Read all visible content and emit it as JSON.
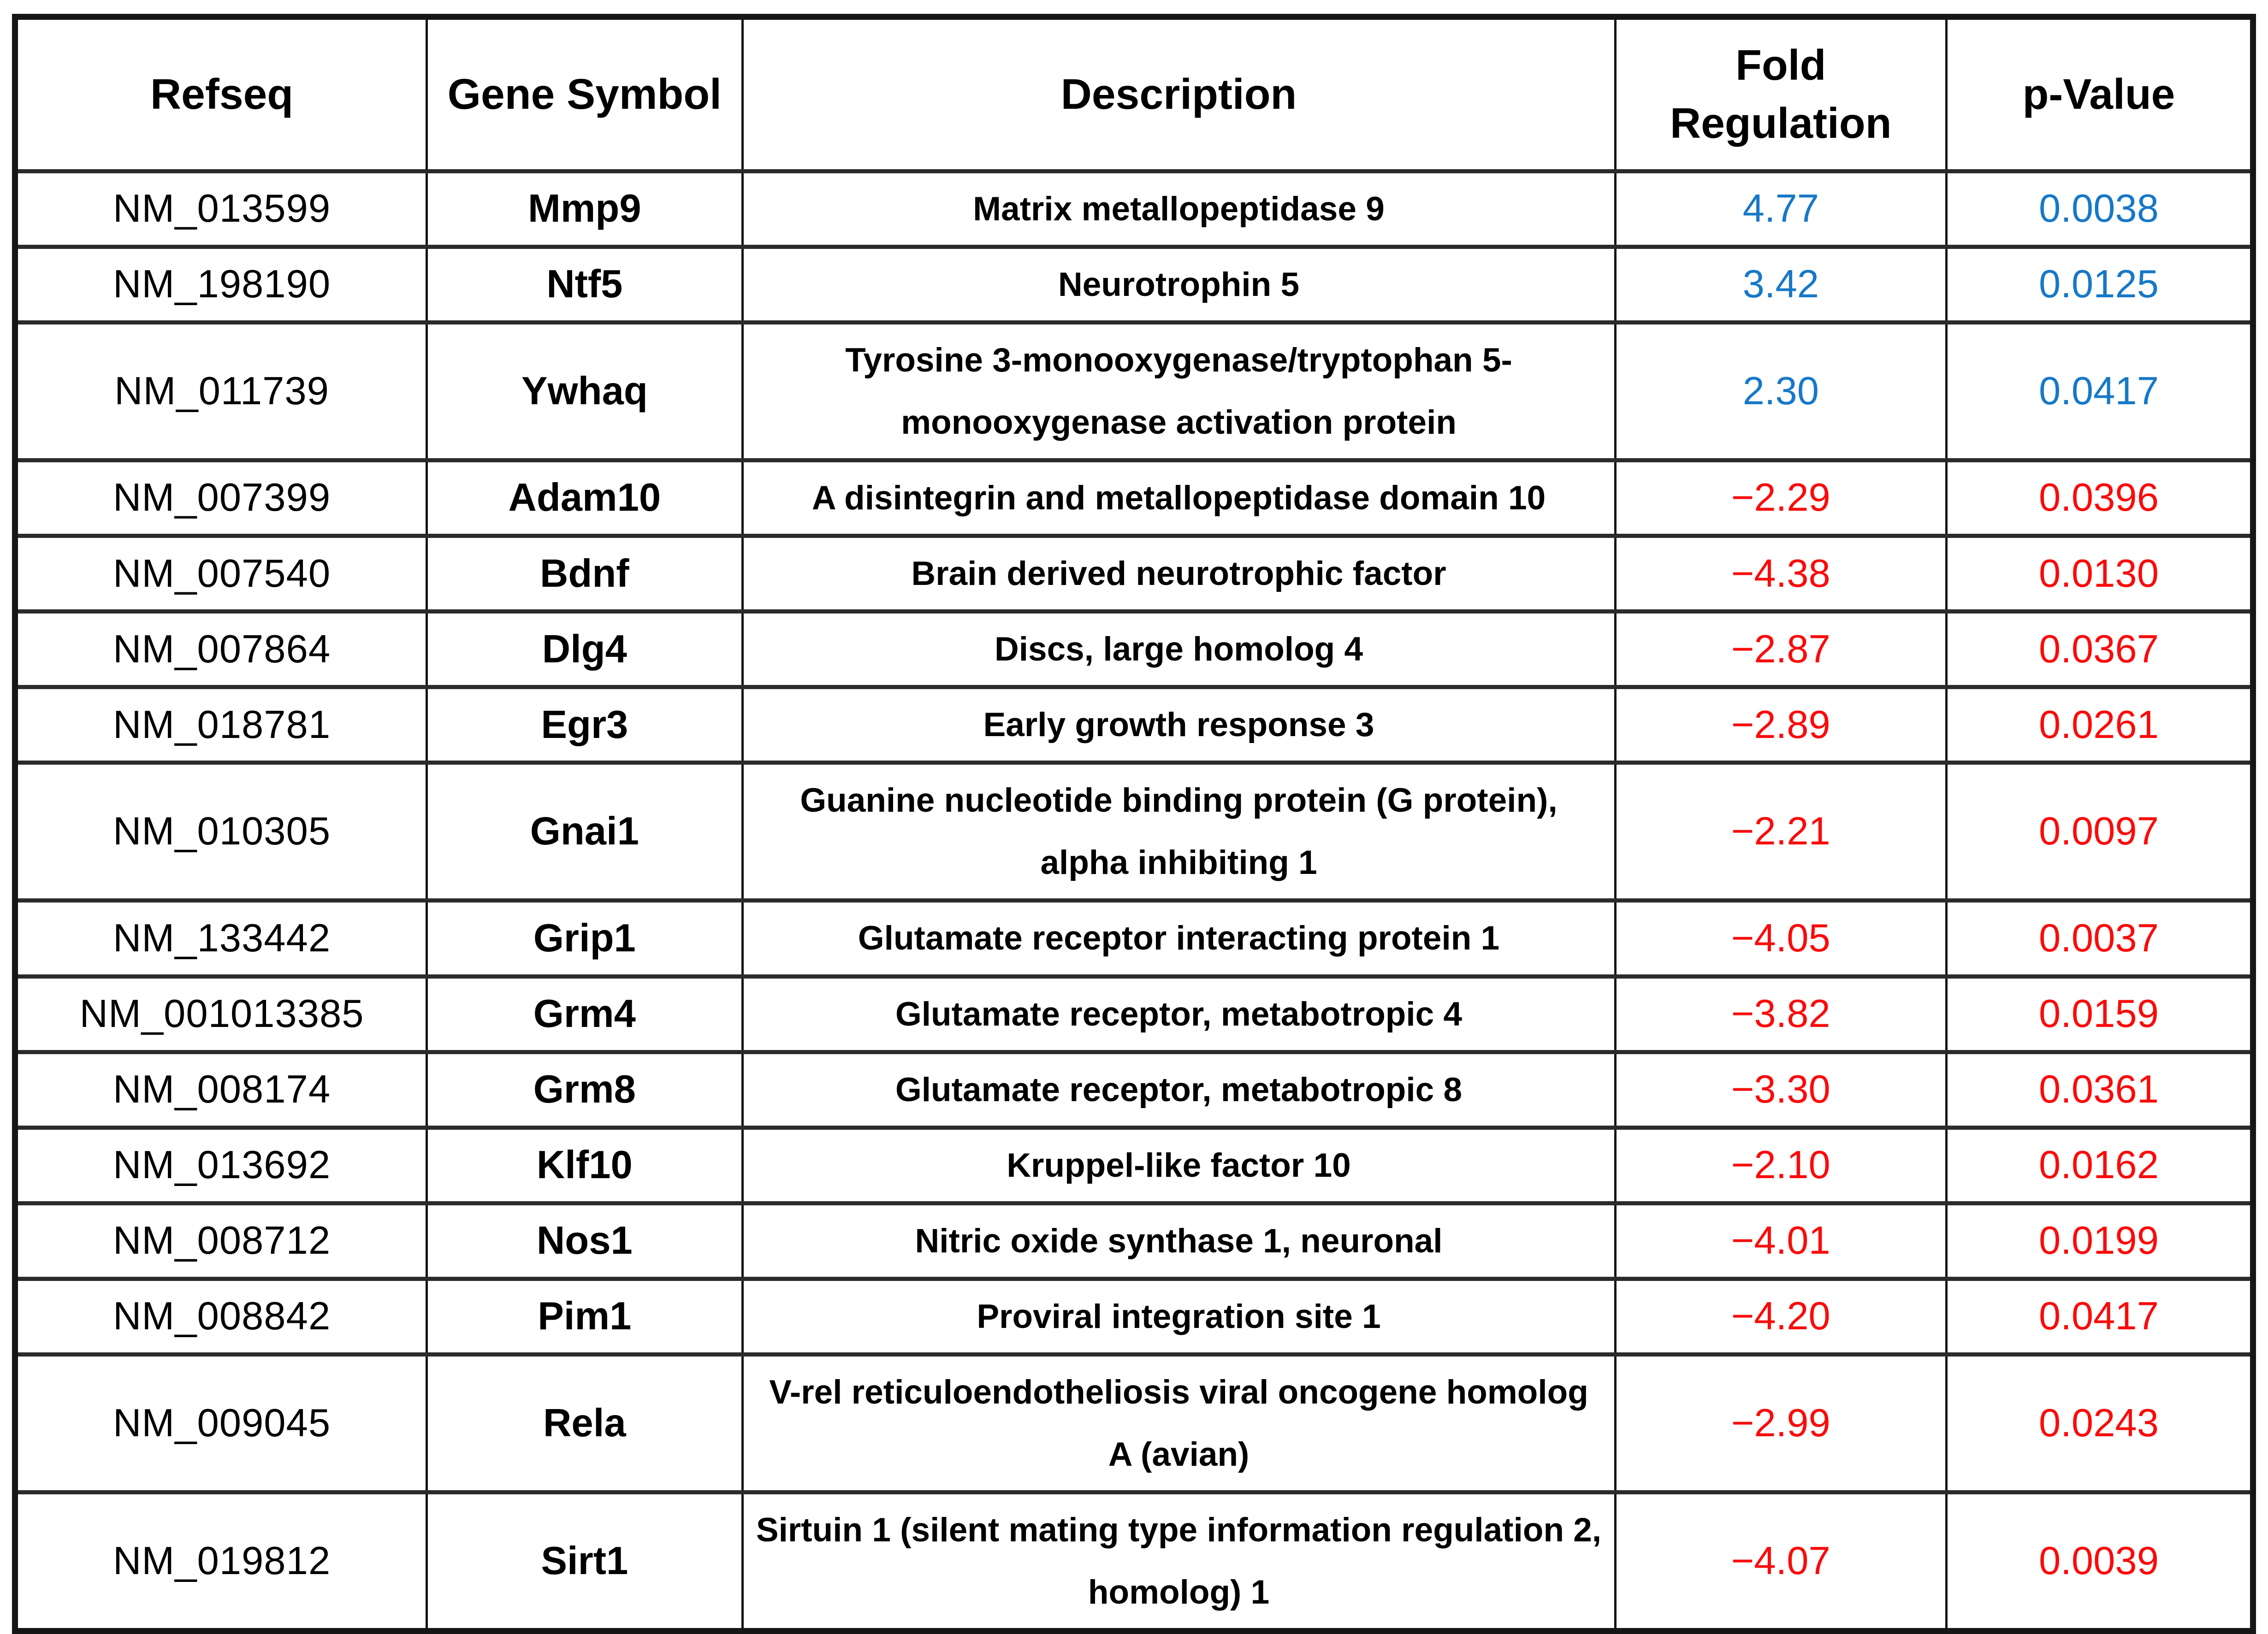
{
  "table": {
    "columns": [
      {
        "key": "refseq",
        "label": "Refseq"
      },
      {
        "key": "gene",
        "label": "Gene Symbol"
      },
      {
        "key": "desc",
        "label": "Description"
      },
      {
        "key": "fold",
        "label": "Fold Regulation"
      },
      {
        "key": "pval",
        "label": "p-Value"
      }
    ],
    "rows": [
      {
        "refseq": "NM_013599",
        "gene": "Mmp9",
        "desc": "Matrix metallopeptidase 9",
        "fold": "4.77",
        "pval": "0.0038",
        "direction": "up"
      },
      {
        "refseq": "NM_198190",
        "gene": "Ntf5",
        "desc": "Neurotrophin 5",
        "fold": "3.42",
        "pval": "0.0125",
        "direction": "up"
      },
      {
        "refseq": "NM_011739",
        "gene": "Ywhaq",
        "desc": "Tyrosine 3-monooxygenase/tryptophan 5-monooxygenase activation protein",
        "fold": "2.30",
        "pval": "0.0417",
        "direction": "up"
      },
      {
        "refseq": "NM_007399",
        "gene": "Adam10",
        "desc": "A disintegrin and metallopeptidase domain 10",
        "fold": "−2.29",
        "pval": "0.0396",
        "direction": "down"
      },
      {
        "refseq": "NM_007540",
        "gene": "Bdnf",
        "desc": "Brain derived neurotrophic factor",
        "fold": "−4.38",
        "pval": "0.0130",
        "direction": "down"
      },
      {
        "refseq": "NM_007864",
        "gene": "Dlg4",
        "desc": "Discs, large homolog 4",
        "fold": "−2.87",
        "pval": "0.0367",
        "direction": "down"
      },
      {
        "refseq": "NM_018781",
        "gene": "Egr3",
        "desc": "Early growth response 3",
        "fold": "−2.89",
        "pval": "0.0261",
        "direction": "down"
      },
      {
        "refseq": "NM_010305",
        "gene": "Gnai1",
        "desc": "Guanine nucleotide binding protein (G protein), alpha inhibiting 1",
        "fold": "−2.21",
        "pval": "0.0097",
        "direction": "down"
      },
      {
        "refseq": "NM_133442",
        "gene": "Grip1",
        "desc": "Glutamate receptor interacting protein 1",
        "fold": "−4.05",
        "pval": "0.0037",
        "direction": "down"
      },
      {
        "refseq": "NM_001013385",
        "gene": "Grm4",
        "desc": "Glutamate receptor, metabotropic 4",
        "fold": "−3.82",
        "pval": "0.0159",
        "direction": "down"
      },
      {
        "refseq": "NM_008174",
        "gene": "Grm8",
        "desc": "Glutamate receptor, metabotropic 8",
        "fold": "−3.30",
        "pval": "0.0361",
        "direction": "down"
      },
      {
        "refseq": "NM_013692",
        "gene": "Klf10",
        "desc": "Kruppel-like factor 10",
        "fold": "−2.10",
        "pval": "0.0162",
        "direction": "down"
      },
      {
        "refseq": "NM_008712",
        "gene": "Nos1",
        "desc": "Nitric oxide synthase 1, neuronal",
        "fold": "−4.01",
        "pval": "0.0199",
        "direction": "down"
      },
      {
        "refseq": "NM_008842",
        "gene": "Pim1",
        "desc": "Proviral integration site 1",
        "fold": "−4.20",
        "pval": "0.0417",
        "direction": "down"
      },
      {
        "refseq": "NM_009045",
        "gene": "Rela",
        "desc": "V-rel reticuloendotheliosis viral oncogene homolog A (avian)",
        "fold": "−2.99",
        "pval": "0.0243",
        "direction": "down"
      },
      {
        "refseq": "NM_019812",
        "gene": "Sirt1",
        "desc": "Sirtuin 1 (silent mating type information regulation 2, homolog) 1",
        "fold": "−4.07",
        "pval": "0.0039",
        "direction": "down"
      }
    ]
  },
  "colors": {
    "up": "#1778C8",
    "down": "#FA0B0B",
    "text": "#000000"
  }
}
